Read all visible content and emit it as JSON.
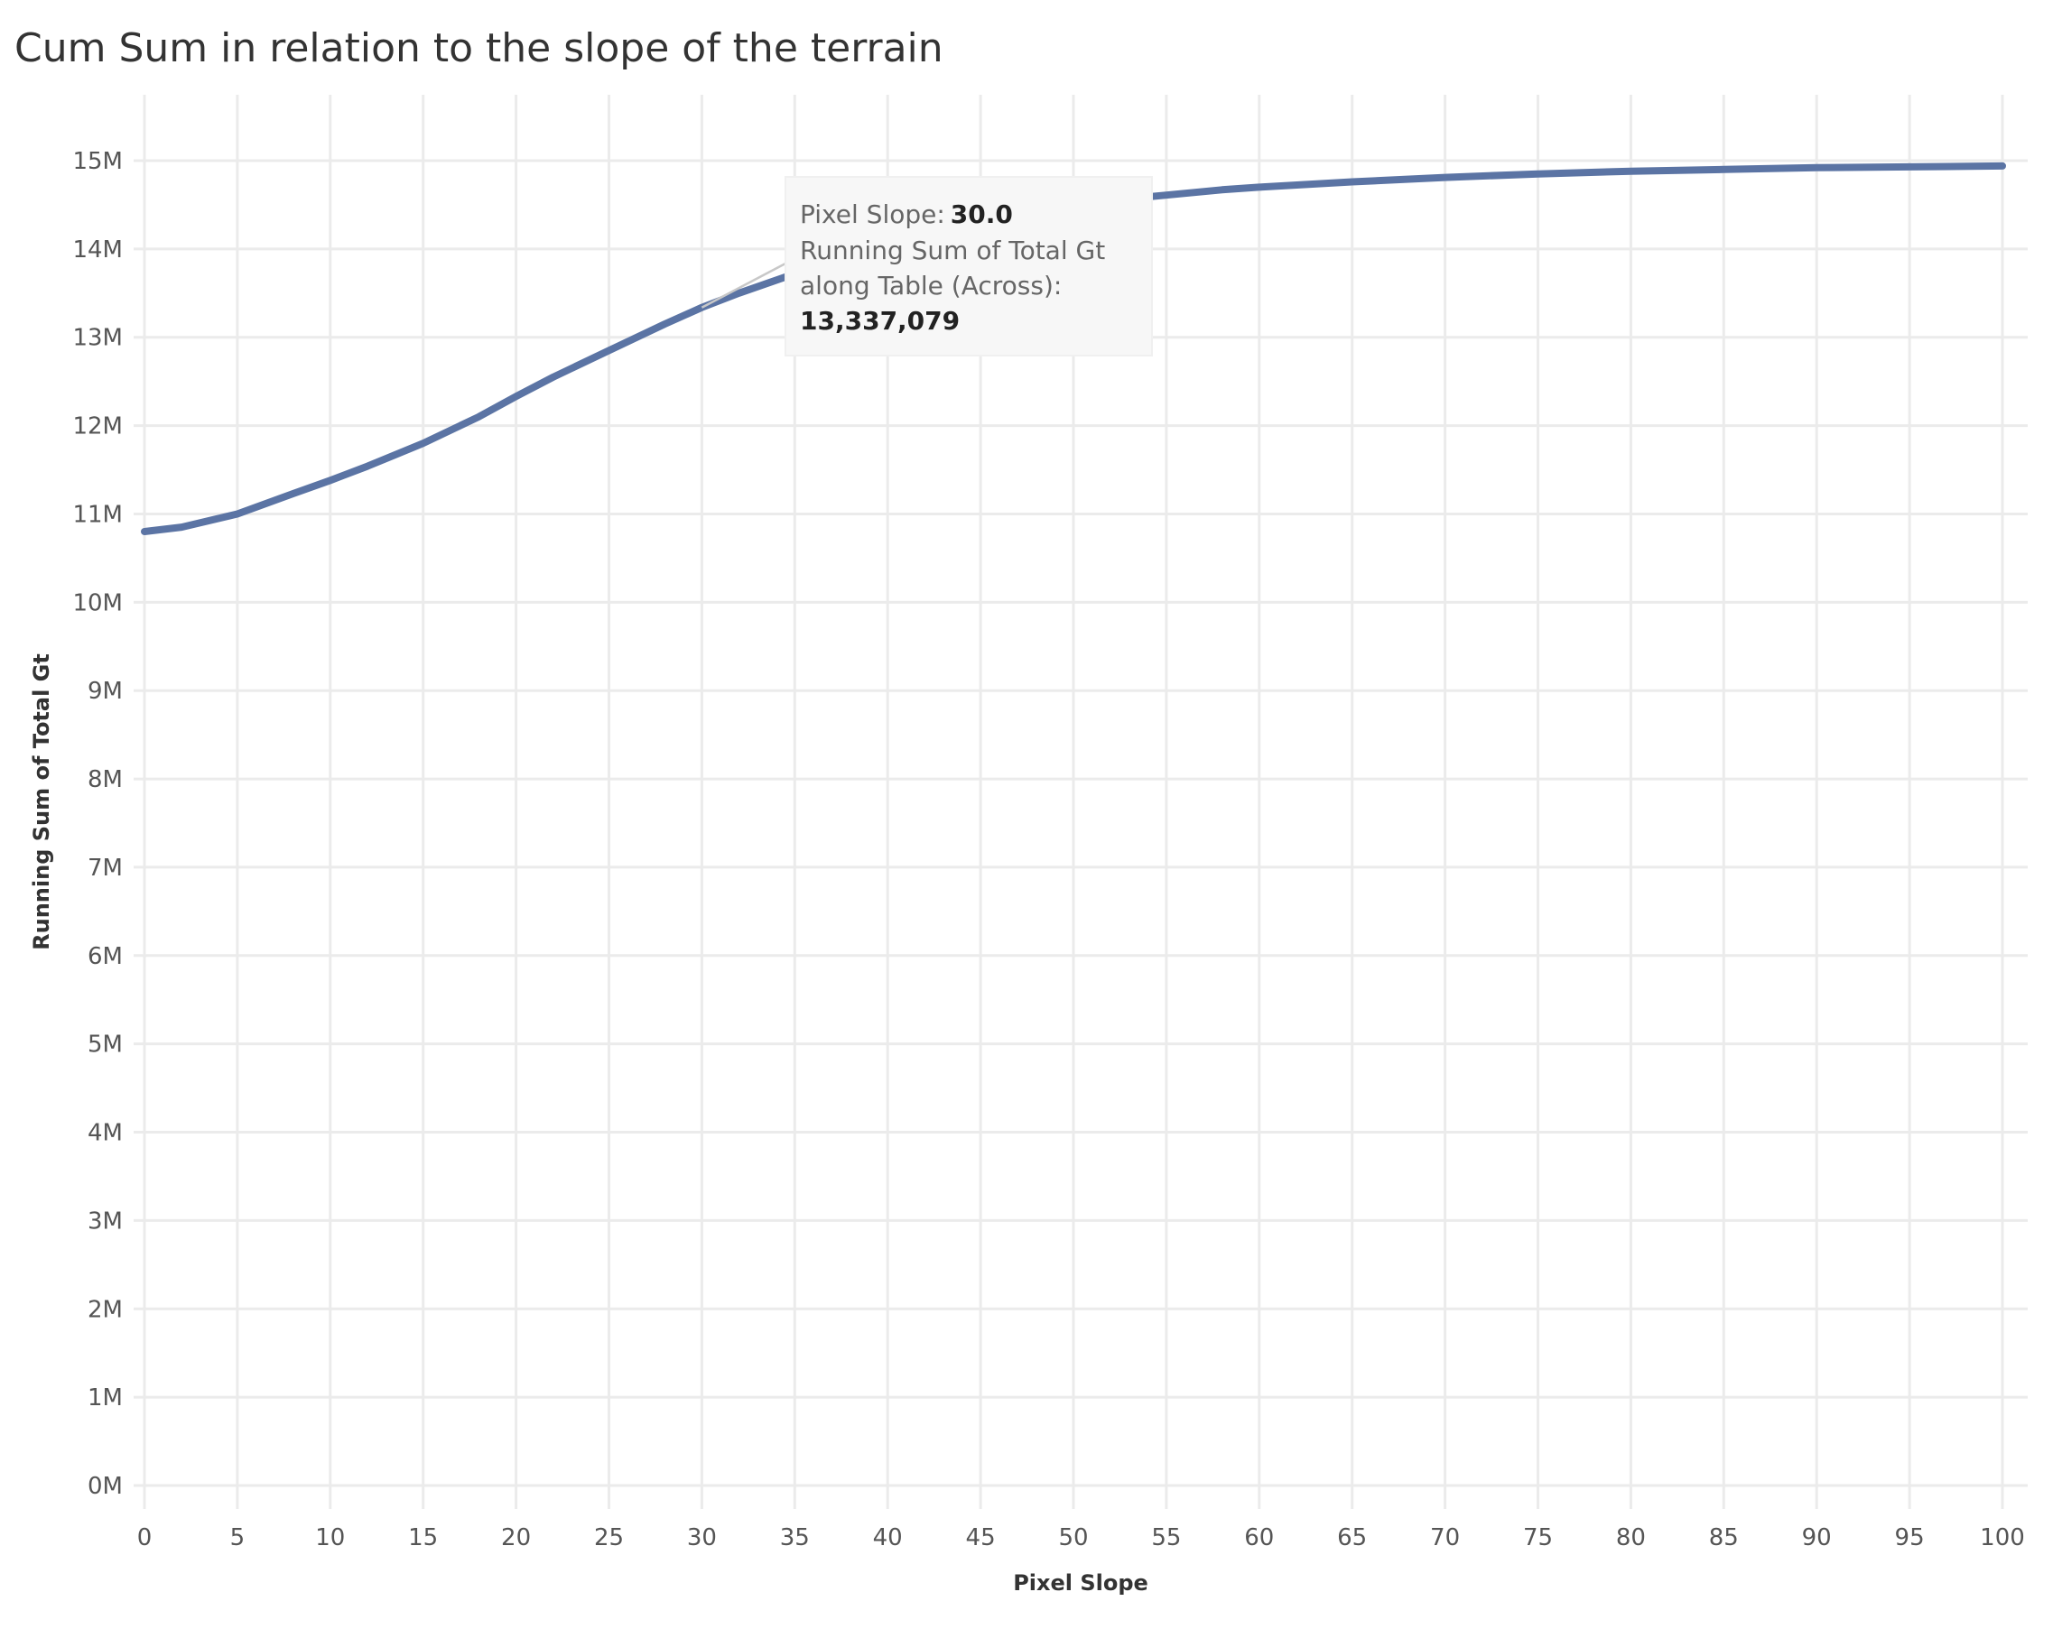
{
  "chart_data": {
    "type": "line",
    "title": "Cum Sum in relation to the slope of the terrain",
    "xlabel": "Pixel Slope",
    "ylabel": "Running Sum of Total Gt",
    "xlim": [
      0,
      100
    ],
    "ylim": [
      0,
      15500000
    ],
    "x_ticks": [
      0,
      5,
      10,
      15,
      20,
      25,
      30,
      35,
      40,
      45,
      50,
      55,
      60,
      65,
      70,
      75,
      80,
      85,
      90,
      95,
      100
    ],
    "x_tick_labels": [
      "0",
      "5",
      "10",
      "15",
      "20",
      "25",
      "30",
      "35",
      "40",
      "45",
      "50",
      "55",
      "60",
      "65",
      "70",
      "75",
      "80",
      "85",
      "90",
      "95",
      "100"
    ],
    "y_ticks": [
      0,
      1000000,
      2000000,
      3000000,
      4000000,
      5000000,
      6000000,
      7000000,
      8000000,
      9000000,
      10000000,
      11000000,
      12000000,
      13000000,
      14000000,
      15000000
    ],
    "y_tick_labels": [
      "0M",
      "1M",
      "2M",
      "3M",
      "4M",
      "5M",
      "6M",
      "7M",
      "8M",
      "9M",
      "10M",
      "11M",
      "12M",
      "13M",
      "14M",
      "15M"
    ],
    "grid": true,
    "series": [
      {
        "name": "",
        "color": "#5b74a4",
        "x": [
          0,
          2,
          5,
          8,
          10,
          12,
          15,
          18,
          20,
          22,
          25,
          28,
          30,
          32,
          35,
          38,
          40,
          42,
          45,
          48,
          50,
          52,
          55,
          58,
          60,
          65,
          70,
          75,
          80,
          85,
          90,
          95,
          100
        ],
        "y": [
          10800000,
          10850000,
          11000000,
          11230000,
          11380000,
          11540000,
          11800000,
          12100000,
          12330000,
          12550000,
          12850000,
          13150000,
          13337079,
          13500000,
          13720000,
          13930000,
          14070000,
          14190000,
          14330000,
          14440000,
          14500000,
          14550000,
          14610000,
          14670000,
          14700000,
          14760000,
          14810000,
          14850000,
          14880000,
          14900000,
          14920000,
          14930000,
          14940000
        ]
      }
    ],
    "tooltip": {
      "x_label": "Pixel Slope:",
      "x_value": "30.0",
      "y_label_line1": "Running Sum of Total Gt",
      "y_label_line2": "along Table (Across):",
      "y_value": "13,337,079",
      "anchor_x": 30,
      "anchor_y": 13337079
    }
  }
}
